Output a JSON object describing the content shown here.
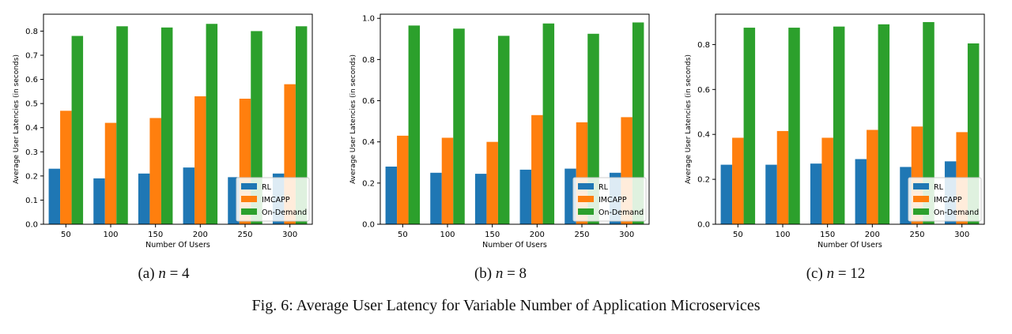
{
  "colors": {
    "RL": "#1f77b4",
    "IMCAPP": "#ff7f0e",
    "On-Demand": "#2ca02c"
  },
  "figure_caption": "Fig. 6: Average User Latency for Variable Number of Application Microservices",
  "chart_data": [
    {
      "type": "bar",
      "caption": {
        "prefix": "(a)",
        "var": "n",
        "rest": "= 4"
      },
      "categories": [
        "50",
        "100",
        "150",
        "200",
        "250",
        "300"
      ],
      "series": [
        {
          "name": "RL",
          "values": [
            0.23,
            0.19,
            0.21,
            0.235,
            0.195,
            0.21
          ]
        },
        {
          "name": "IMCAPP",
          "values": [
            0.47,
            0.42,
            0.44,
            0.53,
            0.52,
            0.58
          ]
        },
        {
          "name": "On-Demand",
          "values": [
            0.78,
            0.82,
            0.815,
            0.83,
            0.8,
            0.82
          ]
        }
      ],
      "xlabel": "Number Of Users",
      "ylabel": "Average User Latencies (in seconds)",
      "ylim": [
        0,
        0.87
      ],
      "yticks": [
        0.0,
        0.1,
        0.2,
        0.3,
        0.4,
        0.5,
        0.6,
        0.7,
        0.8
      ],
      "ytick_labels": [
        "0.0",
        "0.1",
        "0.2",
        "0.3",
        "0.4",
        "0.5",
        "0.6",
        "0.7",
        "0.8"
      ],
      "legend": "lower-right",
      "grid": false
    },
    {
      "type": "bar",
      "caption": {
        "prefix": "(b)",
        "var": "n",
        "rest": "= 8"
      },
      "categories": [
        "50",
        "100",
        "150",
        "200",
        "250",
        "300"
      ],
      "series": [
        {
          "name": "RL",
          "values": [
            0.28,
            0.25,
            0.245,
            0.265,
            0.27,
            0.25
          ]
        },
        {
          "name": "IMCAPP",
          "values": [
            0.43,
            0.42,
            0.4,
            0.53,
            0.495,
            0.52
          ]
        },
        {
          "name": "On-Demand",
          "values": [
            0.965,
            0.95,
            0.915,
            0.975,
            0.925,
            0.98
          ]
        }
      ],
      "xlabel": "Number Of Users",
      "ylabel": "Average User Latencies (in seconds)",
      "ylim": [
        0,
        1.02
      ],
      "yticks": [
        0.0,
        0.2,
        0.4,
        0.6,
        0.8,
        1.0
      ],
      "ytick_labels": [
        "0.0",
        "0.2",
        "0.4",
        "0.6",
        "0.8",
        "1.0"
      ],
      "legend": "lower-right",
      "grid": false
    },
    {
      "type": "bar",
      "caption": {
        "prefix": "(c)",
        "var": "n",
        "rest": "= 12"
      },
      "categories": [
        "50",
        "100",
        "150",
        "200",
        "250",
        "300"
      ],
      "series": [
        {
          "name": "RL",
          "values": [
            0.265,
            0.265,
            0.27,
            0.29,
            0.255,
            0.28
          ]
        },
        {
          "name": "IMCAPP",
          "values": [
            0.385,
            0.415,
            0.385,
            0.42,
            0.435,
            0.41
          ]
        },
        {
          "name": "On-Demand",
          "values": [
            0.875,
            0.875,
            0.88,
            0.89,
            0.9,
            0.805
          ]
        }
      ],
      "xlabel": "Number Of Users",
      "ylabel": "Average User Latencies (in seconds)",
      "ylim": [
        0,
        0.935
      ],
      "yticks": [
        0.0,
        0.2,
        0.4,
        0.6,
        0.8
      ],
      "ytick_labels": [
        "0.0",
        "0.2",
        "0.4",
        "0.6",
        "0.8"
      ],
      "legend": "lower-right",
      "grid": false
    }
  ]
}
